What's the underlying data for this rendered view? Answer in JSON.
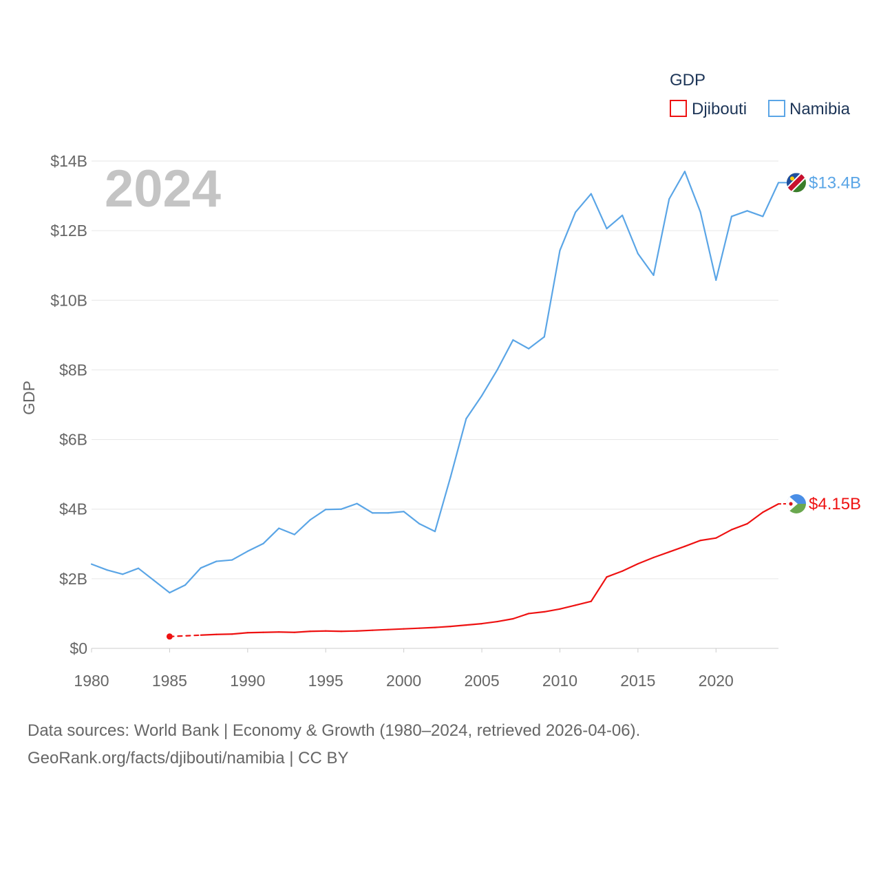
{
  "chart_data": {
    "type": "line",
    "title": "GDP",
    "year_label": "2024",
    "ylabel": "GDP",
    "xlabel": "",
    "x": [
      1980,
      1981,
      1982,
      1983,
      1984,
      1985,
      1986,
      1987,
      1988,
      1989,
      1990,
      1991,
      1992,
      1993,
      1994,
      1995,
      1996,
      1997,
      1998,
      1999,
      2000,
      2001,
      2002,
      2003,
      2004,
      2005,
      2006,
      2007,
      2008,
      2009,
      2010,
      2011,
      2012,
      2013,
      2014,
      2015,
      2016,
      2017,
      2018,
      2019,
      2020,
      2021,
      2022,
      2023,
      2024
    ],
    "xlim": [
      1980,
      2024
    ],
    "ylim": [
      0,
      14
    ],
    "y_unit": "billion USD",
    "x_ticks": [
      "1980",
      "1985",
      "1990",
      "1995",
      "2000",
      "2005",
      "2010",
      "2015",
      "2020"
    ],
    "y_ticks": [
      {
        "value": 0,
        "label": "$0"
      },
      {
        "value": 2,
        "label": "$2B"
      },
      {
        "value": 4,
        "label": "$4B"
      },
      {
        "value": 6,
        "label": "$6B"
      },
      {
        "value": 8,
        "label": "$8B"
      },
      {
        "value": 10,
        "label": "$10B"
      },
      {
        "value": 12,
        "label": "$12B"
      },
      {
        "value": 14,
        "label": "$14B"
      }
    ],
    "grid": true,
    "legend_position": "top-right",
    "series": [
      {
        "name": "Djibouti",
        "color": "#ee1111",
        "end_label": "$4.15B",
        "flag": "djibouti-flag-icon",
        "values": [
          null,
          null,
          null,
          null,
          null,
          0.34,
          null,
          0.38,
          0.4,
          0.41,
          0.45,
          0.46,
          0.47,
          0.46,
          0.49,
          0.5,
          0.49,
          0.5,
          0.52,
          0.54,
          0.56,
          0.58,
          0.6,
          0.63,
          0.67,
          0.71,
          0.77,
          0.85,
          1.0,
          1.05,
          1.13,
          1.24,
          1.35,
          2.05,
          2.22,
          2.43,
          2.61,
          2.77,
          2.93,
          3.1,
          3.17,
          3.41,
          3.58,
          3.91,
          4.15
        ]
      },
      {
        "name": "Namibia",
        "color": "#5aa5e6",
        "end_label": "$13.4B",
        "flag": "namibia-flag-icon",
        "values": [
          2.42,
          2.25,
          2.13,
          2.3,
          1.95,
          1.6,
          1.82,
          2.31,
          2.5,
          2.54,
          2.79,
          3.01,
          3.45,
          3.27,
          3.69,
          3.99,
          4.0,
          4.16,
          3.89,
          3.89,
          3.93,
          3.58,
          3.36,
          4.93,
          6.6,
          7.26,
          8.01,
          8.86,
          8.61,
          8.95,
          11.43,
          12.53,
          13.06,
          12.06,
          12.44,
          11.34,
          10.72,
          12.91,
          13.7,
          12.54,
          10.58,
          12.41,
          12.57,
          12.41,
          13.38
        ]
      }
    ]
  },
  "source_lines": [
    "Data sources: World Bank | Economy & Growth (1980–2024, retrieved 2026-04-06).",
    "GeoRank.org/facts/djibouti/namibia | CC BY"
  ]
}
